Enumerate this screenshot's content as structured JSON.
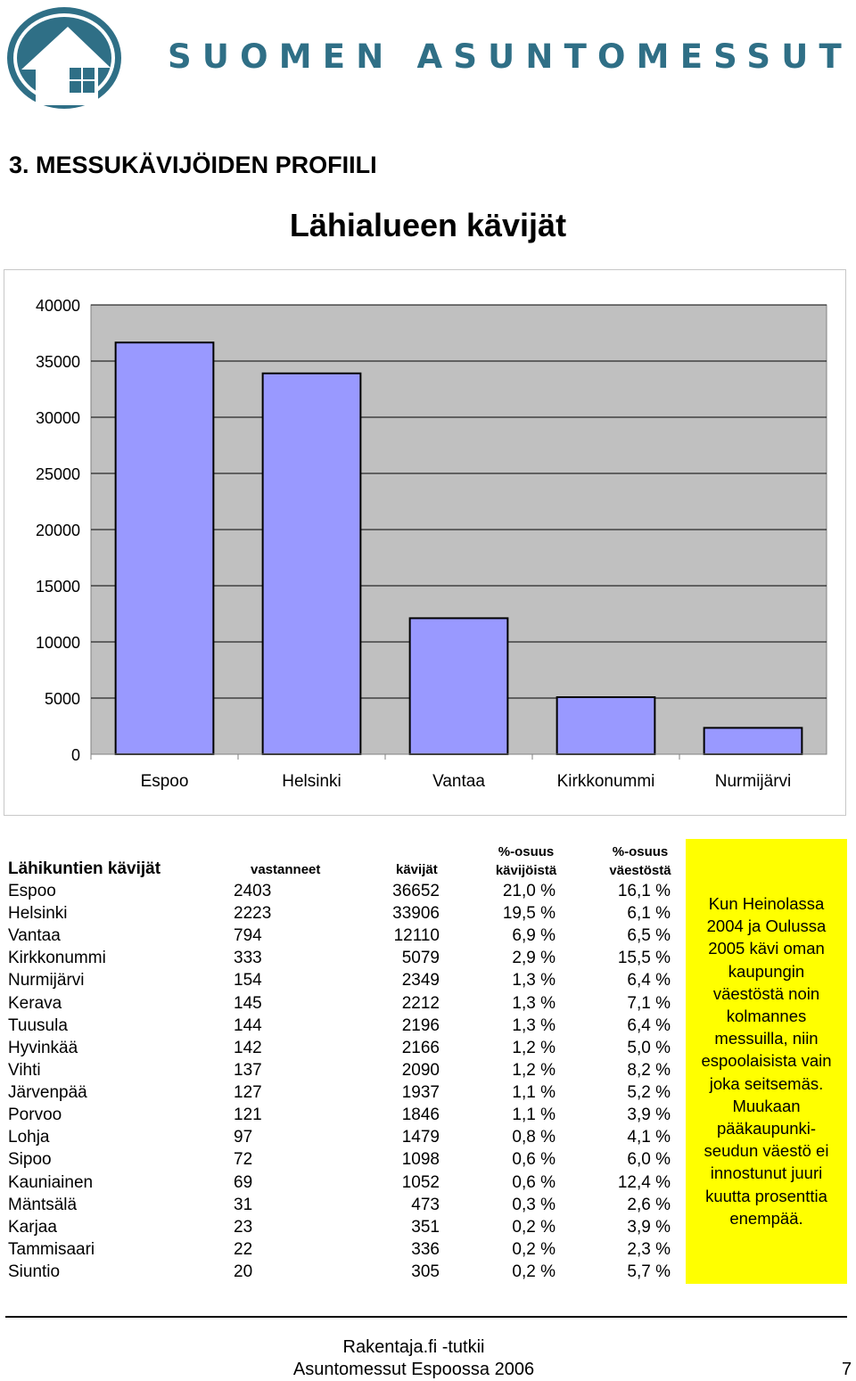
{
  "header": {
    "logo_icon": "house-with-window-icon",
    "brand_name": "SUOMEN ASUNTOMESSUT",
    "brand_color": "#2f6f86"
  },
  "section_title": "3. MESSUKÄVIJÖIDEN PROFIILI",
  "chart_data": {
    "type": "bar",
    "title": "Lähialueen kävijät",
    "categories": [
      "Espoo",
      "Helsinki",
      "Vantaa",
      "Kirkkonummi",
      "Nurmijärvi"
    ],
    "values": [
      36652,
      33906,
      12110,
      5079,
      2349
    ],
    "yticks": [
      "0",
      "5000",
      "10000",
      "15000",
      "20000",
      "25000",
      "30000",
      "35000",
      "40000"
    ],
    "ylim": [
      0,
      40000
    ],
    "bar_color": "#9999ff",
    "plot_bg": "#c0c0c0",
    "grid": true,
    "legend": "none"
  },
  "table": {
    "title": "Lähikuntien kävijät",
    "col_vastanneet": "vastanneet",
    "col_kavijat": "kävijät",
    "col_osuus_kav": [
      "%-osuus",
      "kävijöistä"
    ],
    "col_osuus_vaesto": [
      "%-osuus",
      "väestöstä"
    ],
    "rows": [
      {
        "kunta": "Espoo",
        "vastanneet": "2403",
        "kavijat": "36652",
        "osuus_kavijoista": "21,0 %",
        "osuus_vaestosta": "16,1 %"
      },
      {
        "kunta": "Helsinki",
        "vastanneet": "2223",
        "kavijat": "33906",
        "osuus_kavijoista": "19,5 %",
        "osuus_vaestosta": "6,1 %"
      },
      {
        "kunta": "Vantaa",
        "vastanneet": "794",
        "kavijat": "12110",
        "osuus_kavijoista": "6,9 %",
        "osuus_vaestosta": "6,5 %"
      },
      {
        "kunta": "Kirkkonummi",
        "vastanneet": "333",
        "kavijat": "5079",
        "osuus_kavijoista": "2,9 %",
        "osuus_vaestosta": "15,5 %"
      },
      {
        "kunta": "Nurmijärvi",
        "vastanneet": "154",
        "kavijat": "2349",
        "osuus_kavijoista": "1,3 %",
        "osuus_vaestosta": "6,4 %"
      },
      {
        "kunta": "Kerava",
        "vastanneet": "145",
        "kavijat": "2212",
        "osuus_kavijoista": "1,3 %",
        "osuus_vaestosta": "7,1 %"
      },
      {
        "kunta": "Tuusula",
        "vastanneet": "144",
        "kavijat": "2196",
        "osuus_kavijoista": "1,3 %",
        "osuus_vaestosta": "6,4 %"
      },
      {
        "kunta": "Hyvinkää",
        "vastanneet": "142",
        "kavijat": "2166",
        "osuus_kavijoista": "1,2 %",
        "osuus_vaestosta": "5,0 %"
      },
      {
        "kunta": "Vihti",
        "vastanneet": "137",
        "kavijat": "2090",
        "osuus_kavijoista": "1,2 %",
        "osuus_vaestosta": "8,2 %"
      },
      {
        "kunta": "Järvenpää",
        "vastanneet": "127",
        "kavijat": "1937",
        "osuus_kavijoista": "1,1 %",
        "osuus_vaestosta": "5,2 %"
      },
      {
        "kunta": "Porvoo",
        "vastanneet": "121",
        "kavijat": "1846",
        "osuus_kavijoista": "1,1 %",
        "osuus_vaestosta": "3,9 %"
      },
      {
        "kunta": "Lohja",
        "vastanneet": "97",
        "kavijat": "1479",
        "osuus_kavijoista": "0,8 %",
        "osuus_vaestosta": "4,1 %"
      },
      {
        "kunta": "Sipoo",
        "vastanneet": "72",
        "kavijat": "1098",
        "osuus_kavijoista": "0,6 %",
        "osuus_vaestosta": "6,0 %"
      },
      {
        "kunta": "Kauniainen",
        "vastanneet": "69",
        "kavijat": "1052",
        "osuus_kavijoista": "0,6 %",
        "osuus_vaestosta": "12,4 %"
      },
      {
        "kunta": "Mäntsälä",
        "vastanneet": "31",
        "kavijat": "473",
        "osuus_kavijoista": "0,3 %",
        "osuus_vaestosta": "2,6 %"
      },
      {
        "kunta": "Karjaa",
        "vastanneet": "23",
        "kavijat": "351",
        "osuus_kavijoista": "0,2 %",
        "osuus_vaestosta": "3,9 %"
      },
      {
        "kunta": "Tammisaari",
        "vastanneet": "22",
        "kavijat": "336",
        "osuus_kavijoista": "0,2 %",
        "osuus_vaestosta": "2,3 %"
      },
      {
        "kunta": "Siuntio",
        "vastanneet": "20",
        "kavijat": "305",
        "osuus_kavijoista": "0,2 %",
        "osuus_vaestosta": "5,7 %"
      }
    ]
  },
  "note": {
    "lines": [
      "Kun Heinolassa",
      "2004 ja Oulussa",
      "2005 kävi oman",
      "kaupungin",
      "väestöstä noin",
      "kolmannes",
      "messuilla, niin",
      "espoolaisista vain",
      "joka seitsemäs.",
      "Muukaan",
      "pääkaupunki-",
      "seudun väestö ei",
      "innostunut juuri",
      "kuutta prosenttia",
      "enempää."
    ],
    "bg_color": "#ffff00"
  },
  "footer": {
    "line1": "Rakentaja.fi -tutkii",
    "line2": "Asuntomessut Espoossa 2006",
    "page_number": "7"
  }
}
